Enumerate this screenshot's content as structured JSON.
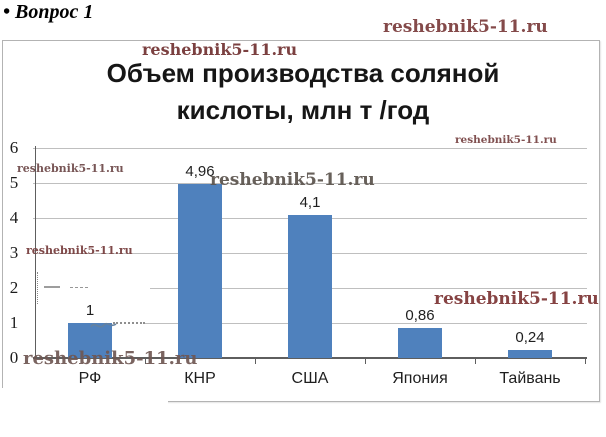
{
  "page": {
    "heading": "• Вопрос 1"
  },
  "watermark": {
    "text": "reshebnik5-11.ru"
  },
  "chart_data": {
    "type": "bar",
    "title": "Объем производства соляной кислоты, млн т /год",
    "title_lines": [
      "Объем производства соляной",
      "кислоты, млн т /год"
    ],
    "categories": [
      "РФ",
      "КНР",
      "США",
      "Япония",
      "Тайвань"
    ],
    "values": [
      1,
      4.96,
      4.1,
      0.86,
      0.24
    ],
    "value_labels": [
      "1",
      "4,96",
      "4,1",
      "0,86",
      "0,24"
    ],
    "xlabel": "",
    "ylabel": "",
    "ylim": [
      0,
      6
    ],
    "yticks": [
      0,
      1,
      2,
      3,
      4,
      5,
      6
    ],
    "ytick_labels": [
      "0",
      "1",
      "2",
      "3",
      "4",
      "5",
      "6"
    ],
    "grid": true,
    "legend": false,
    "bar_color": "#4f81bd"
  }
}
